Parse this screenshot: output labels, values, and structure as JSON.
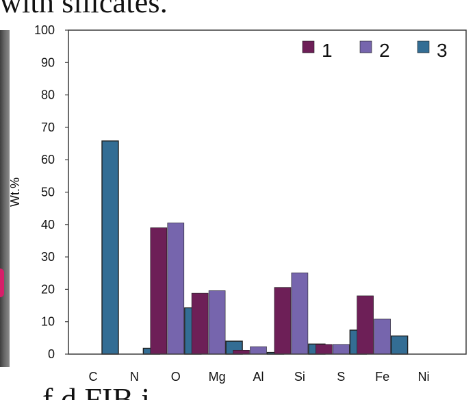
{
  "page": {
    "top_text": "with silicates.",
    "bottom_text": "f          d FIB      i"
  },
  "chart_data": {
    "type": "bar",
    "ylabel": "Wt.%",
    "xlabel": "",
    "ylim": [
      0,
      100
    ],
    "yticks": [
      0,
      10,
      20,
      30,
      40,
      50,
      60,
      70,
      80,
      90,
      100
    ],
    "categories": [
      "C",
      "N",
      "O",
      "Mg",
      "Al",
      "Si",
      "S",
      "Fe",
      "Ni"
    ],
    "legend_position": "top-right",
    "grid": false,
    "series": [
      {
        "name": "1",
        "color": "#6d1f57",
        "values": [
          0,
          0,
          39,
          18.8,
          1.2,
          20.6,
          3.0,
          18.0,
          0
        ]
      },
      {
        "name": "2",
        "color": "#7665ad",
        "values": [
          0,
          0,
          40.5,
          19.6,
          2.3,
          25.1,
          3.0,
          10.8,
          0
        ]
      },
      {
        "name": "3",
        "color": "#336d94",
        "values": [
          65.8,
          1.8,
          14.3,
          4.0,
          0.5,
          3.1,
          7.4,
          5.6,
          0
        ]
      }
    ]
  }
}
